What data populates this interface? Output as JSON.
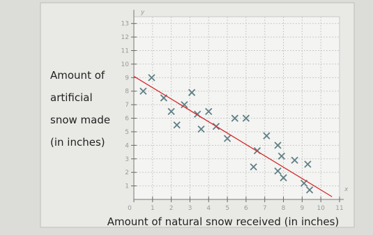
{
  "chart_data": {
    "type": "scatter",
    "ylabel_lines": [
      "Amount of",
      "artificial",
      "snow made",
      "(in inches)"
    ],
    "xlabel": "Amount of natural snow received (in inches)",
    "x_axis_name": "x",
    "y_axis_name": "y",
    "x": [
      0.5,
      0.95,
      1.6,
      2,
      2.3,
      2.7,
      3.1,
      3.4,
      3.6,
      4,
      4.4,
      5,
      5.4,
      6,
      6.4,
      6.6,
      7.1,
      7.7,
      7.7,
      7.9,
      8,
      8.6,
      9.3,
      9.1,
      9.4
    ],
    "y": [
      8,
      9,
      7.5,
      6.5,
      5.5,
      7,
      7.9,
      6.3,
      5.2,
      6.5,
      5.4,
      4.5,
      6,
      6,
      2.4,
      3.6,
      4.7,
      2.1,
      4,
      3.2,
      1.6,
      2.9,
      2.6,
      1.2,
      0.7
    ],
    "color": "#5f7f86",
    "trend_line": {
      "x": [
        0,
        10.6
      ],
      "y": [
        9.1,
        0.2
      ],
      "color": "#d42a2a"
    },
    "xlim": [
      0,
      11
    ],
    "ylim": [
      0,
      13.5
    ],
    "xticks": [
      0,
      1,
      2,
      3,
      4,
      5,
      6,
      7,
      8,
      9,
      10,
      11
    ],
    "yticks": [
      1,
      2,
      3,
      4,
      5,
      6,
      7,
      8,
      9,
      10,
      11,
      12,
      13
    ],
    "grid": true
  }
}
